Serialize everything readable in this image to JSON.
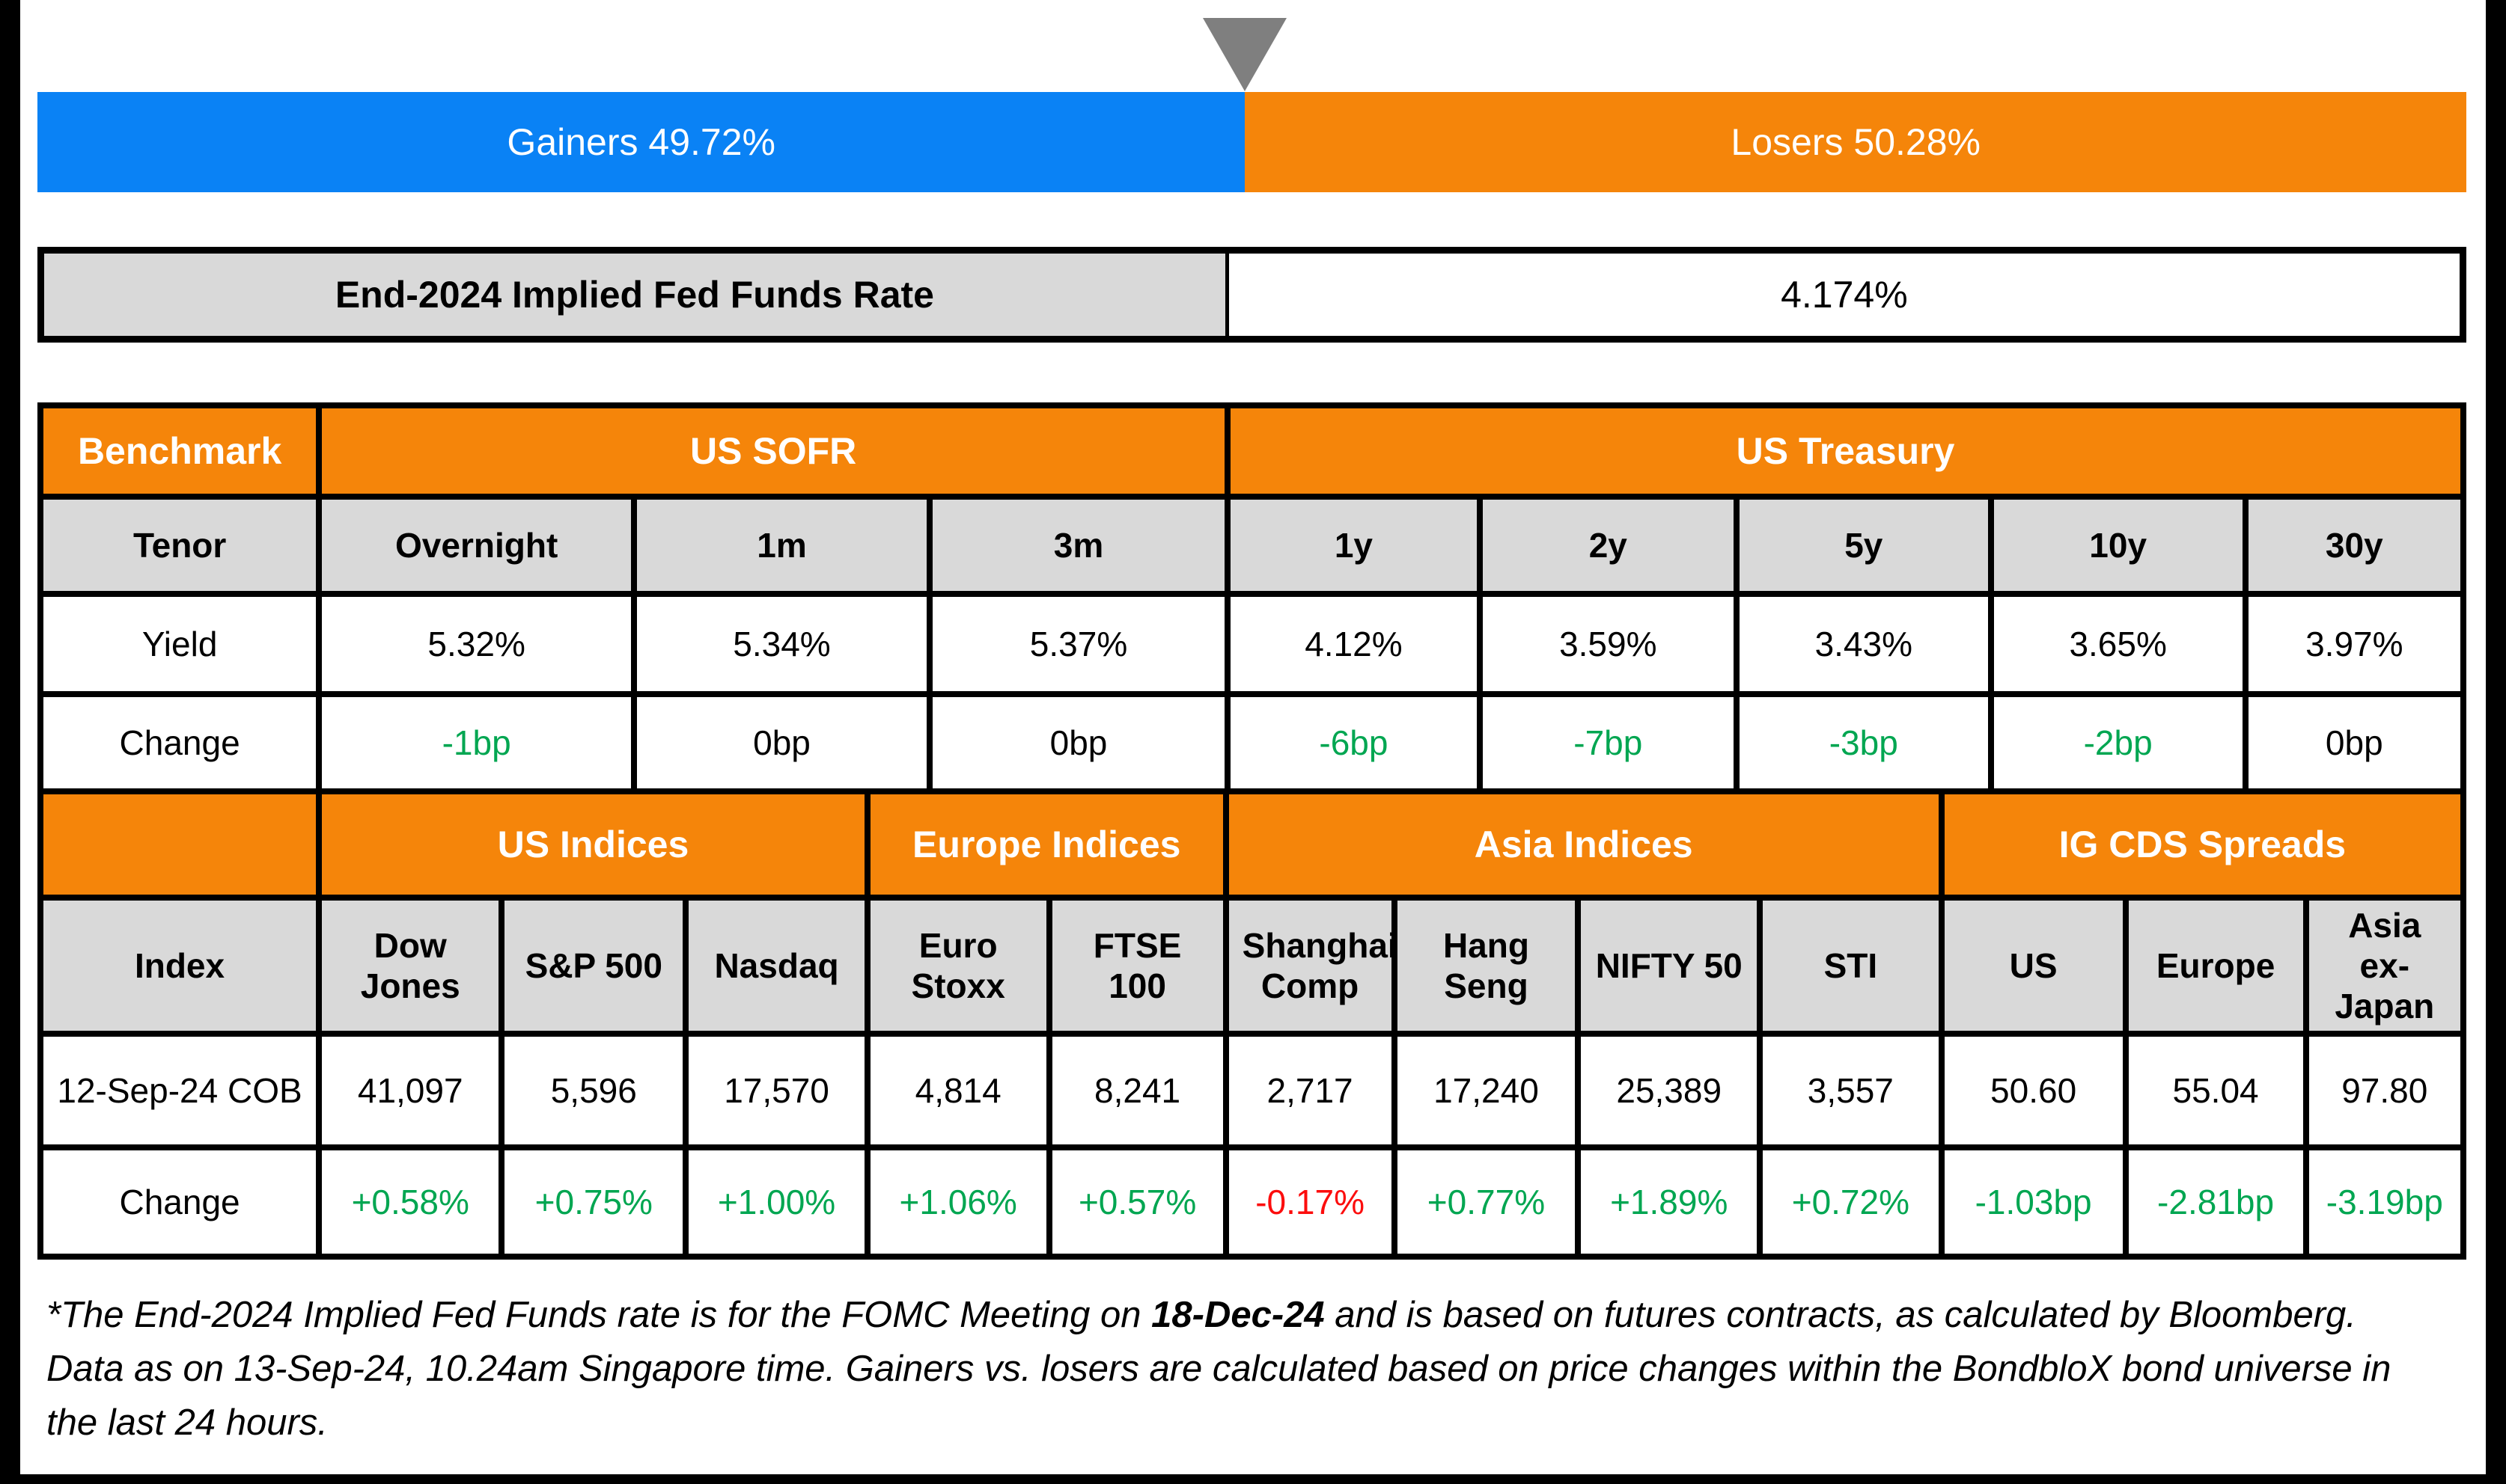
{
  "palette": {
    "blue": "#0a82f5",
    "orange": "#f5850a",
    "gray_cell": "#d9d9d9",
    "triangle_gray": "#7f7f7f",
    "positive": "#00a651",
    "negative": "#fc0d0d",
    "neutral": "#000000"
  },
  "top_bar": {
    "marker_icon": "down-pointer-triangle",
    "segments": [
      {
        "label": "Gainers 49.72%",
        "pct": 49.72,
        "color_key": "blue"
      },
      {
        "label": "Losers 50.28%",
        "pct": 50.28,
        "color_key": "orange"
      }
    ]
  },
  "fed_funds": {
    "label": "End-2024 Implied Fed Funds Rate",
    "value": "4.174%"
  },
  "benchmark_table": {
    "corner_label": "Benchmark",
    "groups": [
      {
        "label": "US SOFR",
        "span": 3
      },
      {
        "label": "US Treasury",
        "span": 5
      }
    ],
    "tenor": {
      "label": "Tenor",
      "cells": [
        "Overnight",
        "1m",
        "3m",
        "1y",
        "2y",
        "5y",
        "10y",
        "30y"
      ]
    },
    "yield": {
      "label": "Yield",
      "cells": [
        "5.32%",
        "5.34%",
        "5.37%",
        "4.12%",
        "3.59%",
        "3.43%",
        "3.65%",
        "3.97%"
      ]
    },
    "change": {
      "label": "Change",
      "cells": [
        "-1bp",
        "0bp",
        "0bp",
        "-6bp",
        "-7bp",
        "-3bp",
        "-2bp",
        "0bp"
      ],
      "sentiment": [
        "positive",
        "neutral",
        "neutral",
        "positive",
        "positive",
        "positive",
        "positive",
        "neutral"
      ]
    }
  },
  "indices_table": {
    "corner_label": "",
    "groups": [
      {
        "label": "US Indices",
        "span": 3
      },
      {
        "label": "Europe Indices",
        "span": 2
      },
      {
        "label": "Asia Indices",
        "span": 4
      },
      {
        "label": "IG CDS Spreads",
        "span": 3
      }
    ],
    "index": {
      "label": "Index",
      "cells": [
        "Dow Jones",
        "S&P 500",
        "Nasdaq",
        "Euro Stoxx",
        "FTSE 100",
        "Shanghai Comp",
        "Hang Seng",
        "NIFTY 50",
        "STI",
        "US",
        "Europe",
        "Asia ex-Japan"
      ]
    },
    "close": {
      "label": "12-Sep-24 COB",
      "cells": [
        "41,097",
        "5,596",
        "17,570",
        "4,814",
        "8,241",
        "2,717",
        "17,240",
        "25,389",
        "3,557",
        "50.60",
        "55.04",
        "97.80"
      ]
    },
    "change": {
      "label": "Change",
      "cells": [
        "+0.58%",
        "+0.75%",
        "+1.00%",
        "+1.06%",
        "+0.57%",
        "-0.17%",
        "+0.77%",
        "+1.89%",
        "+0.72%",
        "-1.03bp",
        "-2.81bp",
        "-3.19bp"
      ],
      "sentiment": [
        "positive",
        "positive",
        "positive",
        "positive",
        "positive",
        "negative",
        "positive",
        "positive",
        "positive",
        "positive",
        "positive",
        "positive"
      ]
    }
  },
  "footnote": {
    "part1": "*The End-2024 Implied Fed Funds rate is for the FOMC Meeting on ",
    "bold_date": "18-Dec-24",
    "part2": " and is based on futures contracts, as calculated by Bloomberg. Data as on 13-Sep-24, 10.24am Singapore time. Gainers vs. losers are calculated based on price changes within the BondbloX bond universe in the last 24 hours."
  },
  "chart_data": [
    {
      "type": "bar",
      "title": "Gainers vs Losers",
      "orientation": "horizontal-stacked",
      "categories": [
        "Gainers",
        "Losers"
      ],
      "values": [
        49.72,
        50.28
      ],
      "unit": "%",
      "colors": [
        "#0a82f5",
        "#f5850a"
      ],
      "annotation": "gray pointer marks the 49.72/50.28 split"
    },
    {
      "type": "table",
      "title": "End-2024 Implied Fed Funds Rate",
      "rows": [
        [
          "End-2024 Implied Fed Funds Rate",
          "4.174%"
        ]
      ]
    },
    {
      "type": "table",
      "title": "Benchmark",
      "group_headers": {
        "US SOFR": [
          "Overnight",
          "1m",
          "3m"
        ],
        "US Treasury": [
          "1y",
          "2y",
          "5y",
          "10y",
          "30y"
        ]
      },
      "columns": [
        "Tenor",
        "Overnight",
        "1m",
        "3m",
        "1y",
        "2y",
        "5y",
        "10y",
        "30y"
      ],
      "rows": [
        [
          "Yield",
          "5.32%",
          "5.34%",
          "5.37%",
          "4.12%",
          "3.59%",
          "3.43%",
          "3.65%",
          "3.97%"
        ],
        [
          "Change",
          "-1bp",
          "0bp",
          "0bp",
          "-6bp",
          "-7bp",
          "-3bp",
          "-2bp",
          "0bp"
        ]
      ]
    },
    {
      "type": "table",
      "title": "Indices and IG CDS Spreads",
      "group_headers": {
        "US Indices": [
          "Dow Jones",
          "S&P 500",
          "Nasdaq"
        ],
        "Europe Indices": [
          "Euro Stoxx",
          "FTSE 100"
        ],
        "Asia Indices": [
          "Shanghai Comp",
          "Hang Seng",
          "NIFTY 50",
          "STI"
        ],
        "IG CDS Spreads": [
          "US",
          "Europe",
          "Asia ex-Japan"
        ]
      },
      "columns": [
        "Index",
        "Dow Jones",
        "S&P 500",
        "Nasdaq",
        "Euro Stoxx",
        "FTSE 100",
        "Shanghai Comp",
        "Hang Seng",
        "NIFTY 50",
        "STI",
        "US",
        "Europe",
        "Asia ex-Japan"
      ],
      "rows": [
        [
          "12-Sep-24 COB",
          "41,097",
          "5,596",
          "17,570",
          "4,814",
          "8,241",
          "2,717",
          "17,240",
          "25,389",
          "3,557",
          "50.60",
          "55.04",
          "97.80"
        ],
        [
          "Change",
          "+0.58%",
          "+0.75%",
          "+1.00%",
          "+1.06%",
          "+0.57%",
          "-0.17%",
          "+0.77%",
          "+1.89%",
          "+0.72%",
          "-1.03bp",
          "-2.81bp",
          "-3.19bp"
        ]
      ]
    }
  ]
}
